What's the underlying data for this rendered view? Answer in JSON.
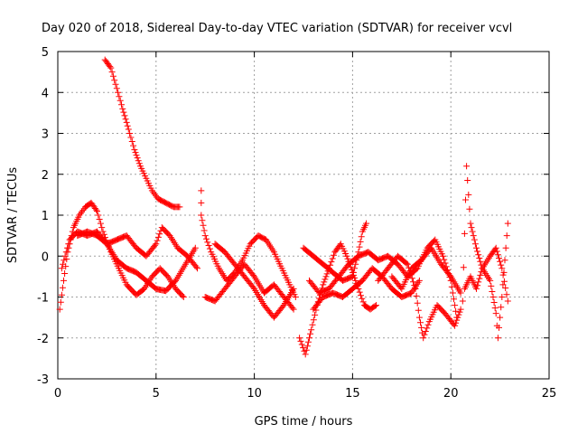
{
  "chart_data": {
    "type": "scatter",
    "title": "Day 020 of 2018, Sidereal Day-to-day VTEC variation (SDTVAR) for receiver vcvl",
    "xlabel": "GPS time / hours",
    "ylabel": "SDTVAR / TECUs",
    "xlim": [
      0,
      25
    ],
    "ylim": [
      -3,
      5
    ],
    "xticks": [
      0,
      5,
      10,
      15,
      20,
      25
    ],
    "yticks": [
      -3,
      -2,
      -1,
      0,
      1,
      2,
      3,
      4,
      5
    ],
    "grid": true,
    "marker": "+",
    "series": [
      {
        "name": "SDTVAR",
        "color": "#ff0000",
        "traces": [
          [
            [
              2.4,
              4.8
            ],
            [
              2.7,
              4.6
            ],
            [
              3.0,
              4.1
            ],
            [
              3.3,
              3.6
            ],
            [
              3.6,
              3.1
            ],
            [
              3.9,
              2.6
            ],
            [
              4.2,
              2.2
            ],
            [
              4.5,
              1.9
            ],
            [
              4.8,
              1.6
            ],
            [
              5.1,
              1.4
            ],
            [
              5.5,
              1.3
            ],
            [
              5.9,
              1.2
            ],
            [
              6.2,
              1.2
            ]
          ],
          [
            [
              0.1,
              -1.3
            ],
            [
              0.3,
              -0.6
            ],
            [
              0.5,
              0.1
            ],
            [
              0.8,
              0.7
            ],
            [
              1.1,
              1.0
            ],
            [
              1.4,
              1.2
            ],
            [
              1.7,
              1.3
            ],
            [
              2.0,
              1.1
            ],
            [
              2.3,
              0.6
            ],
            [
              2.7,
              0.1
            ],
            [
              3.1,
              -0.3
            ],
            [
              3.5,
              -0.7
            ],
            [
              4.0,
              -0.95
            ],
            [
              4.4,
              -0.8
            ],
            [
              4.8,
              -0.5
            ],
            [
              5.2,
              -0.3
            ],
            [
              5.6,
              -0.5
            ],
            [
              6.0,
              -0.8
            ],
            [
              6.4,
              -1.0
            ]
          ],
          [
            [
              0.2,
              -0.3
            ],
            [
              0.6,
              0.4
            ],
            [
              1.0,
              0.6
            ],
            [
              1.5,
              0.5
            ],
            [
              2.0,
              0.6
            ],
            [
              2.5,
              0.3
            ],
            [
              3.0,
              -0.1
            ],
            [
              3.5,
              -0.3
            ],
            [
              4.0,
              -0.4
            ],
            [
              4.5,
              -0.6
            ],
            [
              5.0,
              -0.8
            ],
            [
              5.5,
              -0.85
            ],
            [
              6.0,
              -0.6
            ],
            [
              6.5,
              -0.2
            ],
            [
              7.0,
              0.2
            ]
          ],
          [
            [
              1.0,
              0.5
            ],
            [
              1.5,
              0.6
            ],
            [
              2.0,
              0.5
            ],
            [
              2.5,
              0.3
            ],
            [
              3.0,
              0.4
            ],
            [
              3.5,
              0.5
            ],
            [
              4.0,
              0.2
            ],
            [
              4.5,
              0.0
            ],
            [
              5.0,
              0.3
            ],
            [
              5.3,
              0.7
            ],
            [
              5.7,
              0.5
            ],
            [
              6.1,
              0.2
            ],
            [
              6.6,
              0.0
            ],
            [
              7.1,
              -0.3
            ]
          ],
          [
            [
              7.3,
              1.6
            ],
            [
              7.3,
              1.0
            ],
            [
              7.5,
              0.5
            ],
            [
              7.8,
              0.1
            ],
            [
              8.2,
              -0.3
            ],
            [
              8.6,
              -0.6
            ],
            [
              9.0,
              -0.4
            ],
            [
              9.4,
              -0.1
            ],
            [
              9.8,
              0.3
            ],
            [
              10.2,
              0.5
            ],
            [
              10.6,
              0.4
            ],
            [
              11.0,
              0.1
            ],
            [
              11.4,
              -0.3
            ],
            [
              11.8,
              -0.7
            ],
            [
              12.1,
              -1.0
            ]
          ],
          [
            [
              7.5,
              -1.0
            ],
            [
              8.0,
              -1.1
            ],
            [
              8.5,
              -0.8
            ],
            [
              9.0,
              -0.5
            ],
            [
              9.5,
              -0.2
            ],
            [
              10.0,
              -0.5
            ],
            [
              10.5,
              -0.9
            ],
            [
              11.0,
              -0.7
            ],
            [
              11.5,
              -1.0
            ],
            [
              12.0,
              -1.3
            ]
          ],
          [
            [
              8.0,
              0.3
            ],
            [
              8.5,
              0.1
            ],
            [
              9.0,
              -0.2
            ],
            [
              9.5,
              -0.5
            ],
            [
              10.0,
              -0.8
            ],
            [
              10.5,
              -1.2
            ],
            [
              11.0,
              -1.5
            ],
            [
              11.5,
              -1.2
            ],
            [
              12.0,
              -0.8
            ]
          ],
          [
            [
              12.3,
              -2.0
            ],
            [
              12.6,
              -2.4
            ],
            [
              12.9,
              -1.8
            ],
            [
              13.2,
              -1.2
            ],
            [
              13.5,
              -0.7
            ],
            [
              13.8,
              -0.3
            ],
            [
              14.1,
              0.1
            ],
            [
              14.4,
              0.3
            ],
            [
              14.7,
              0.0
            ],
            [
              15.0,
              -0.4
            ],
            [
              15.3,
              -0.8
            ],
            [
              15.6,
              -1.2
            ],
            [
              15.9,
              -1.3
            ],
            [
              16.2,
              -1.2
            ]
          ],
          [
            [
              12.5,
              0.2
            ],
            [
              13.0,
              0.0
            ],
            [
              13.5,
              -0.2
            ],
            [
              14.0,
              -0.4
            ],
            [
              14.5,
              -0.6
            ],
            [
              15.0,
              -0.5
            ],
            [
              15.3,
              0.1
            ],
            [
              15.5,
              0.6
            ],
            [
              15.7,
              0.8
            ]
          ],
          [
            [
              12.8,
              -0.6
            ],
            [
              13.3,
              -0.9
            ],
            [
              13.8,
              -0.8
            ],
            [
              14.3,
              -0.5
            ],
            [
              14.8,
              -0.2
            ],
            [
              15.3,
              0.0
            ],
            [
              15.8,
              0.1
            ],
            [
              16.3,
              -0.1
            ],
            [
              16.8,
              0.0
            ],
            [
              17.3,
              -0.2
            ],
            [
              17.8,
              -0.5
            ],
            [
              18.3,
              -0.3
            ],
            [
              18.8,
              0.2
            ],
            [
              19.2,
              0.4
            ],
            [
              19.6,
              0.0
            ],
            [
              20.0,
              -0.6
            ],
            [
              20.3,
              -1.5
            ]
          ],
          [
            [
              13.0,
              -1.3
            ],
            [
              13.5,
              -1.0
            ],
            [
              14.0,
              -0.9
            ],
            [
              14.5,
              -1.0
            ],
            [
              15.0,
              -0.8
            ],
            [
              15.5,
              -0.6
            ],
            [
              16.0,
              -0.3
            ],
            [
              16.5,
              -0.5
            ],
            [
              17.0,
              -0.8
            ],
            [
              17.5,
              -1.0
            ],
            [
              18.0,
              -0.9
            ],
            [
              18.4,
              -0.6
            ]
          ],
          [
            [
              16.3,
              -0.6
            ],
            [
              16.8,
              -0.3
            ],
            [
              17.3,
              0.0
            ],
            [
              17.8,
              -0.2
            ],
            [
              18.2,
              -0.8
            ],
            [
              18.4,
              -1.5
            ],
            [
              18.6,
              -2.0
            ],
            [
              18.9,
              -1.6
            ],
            [
              19.3,
              -1.2
            ],
            [
              19.7,
              -1.4
            ],
            [
              20.2,
              -1.7
            ],
            [
              20.5,
              -1.3
            ]
          ],
          [
            [
              17.0,
              -0.5
            ],
            [
              17.5,
              -0.8
            ],
            [
              18.0,
              -0.3
            ],
            [
              18.5,
              -0.1
            ],
            [
              19.0,
              0.2
            ],
            [
              19.5,
              -0.2
            ],
            [
              20.0,
              -0.5
            ],
            [
              20.5,
              -0.9
            ]
          ],
          [
            [
              20.6,
              -1.1
            ],
            [
              20.8,
              2.2
            ],
            [
              20.9,
              1.5
            ],
            [
              21.0,
              0.8
            ],
            [
              21.3,
              0.2
            ],
            [
              21.6,
              -0.3
            ],
            [
              22.0,
              -0.6
            ],
            [
              22.3,
              -1.4
            ],
            [
              22.4,
              -2.0
            ],
            [
              22.6,
              -1.0
            ],
            [
              22.8,
              0.2
            ],
            [
              22.9,
              0.8
            ]
          ],
          [
            [
              20.7,
              -0.8
            ],
            [
              21.0,
              -0.5
            ],
            [
              21.3,
              -0.8
            ],
            [
              21.6,
              -0.3
            ],
            [
              22.0,
              0.0
            ],
            [
              22.3,
              0.2
            ],
            [
              22.6,
              -0.3
            ],
            [
              22.9,
              -1.1
            ]
          ]
        ]
      }
    ]
  }
}
